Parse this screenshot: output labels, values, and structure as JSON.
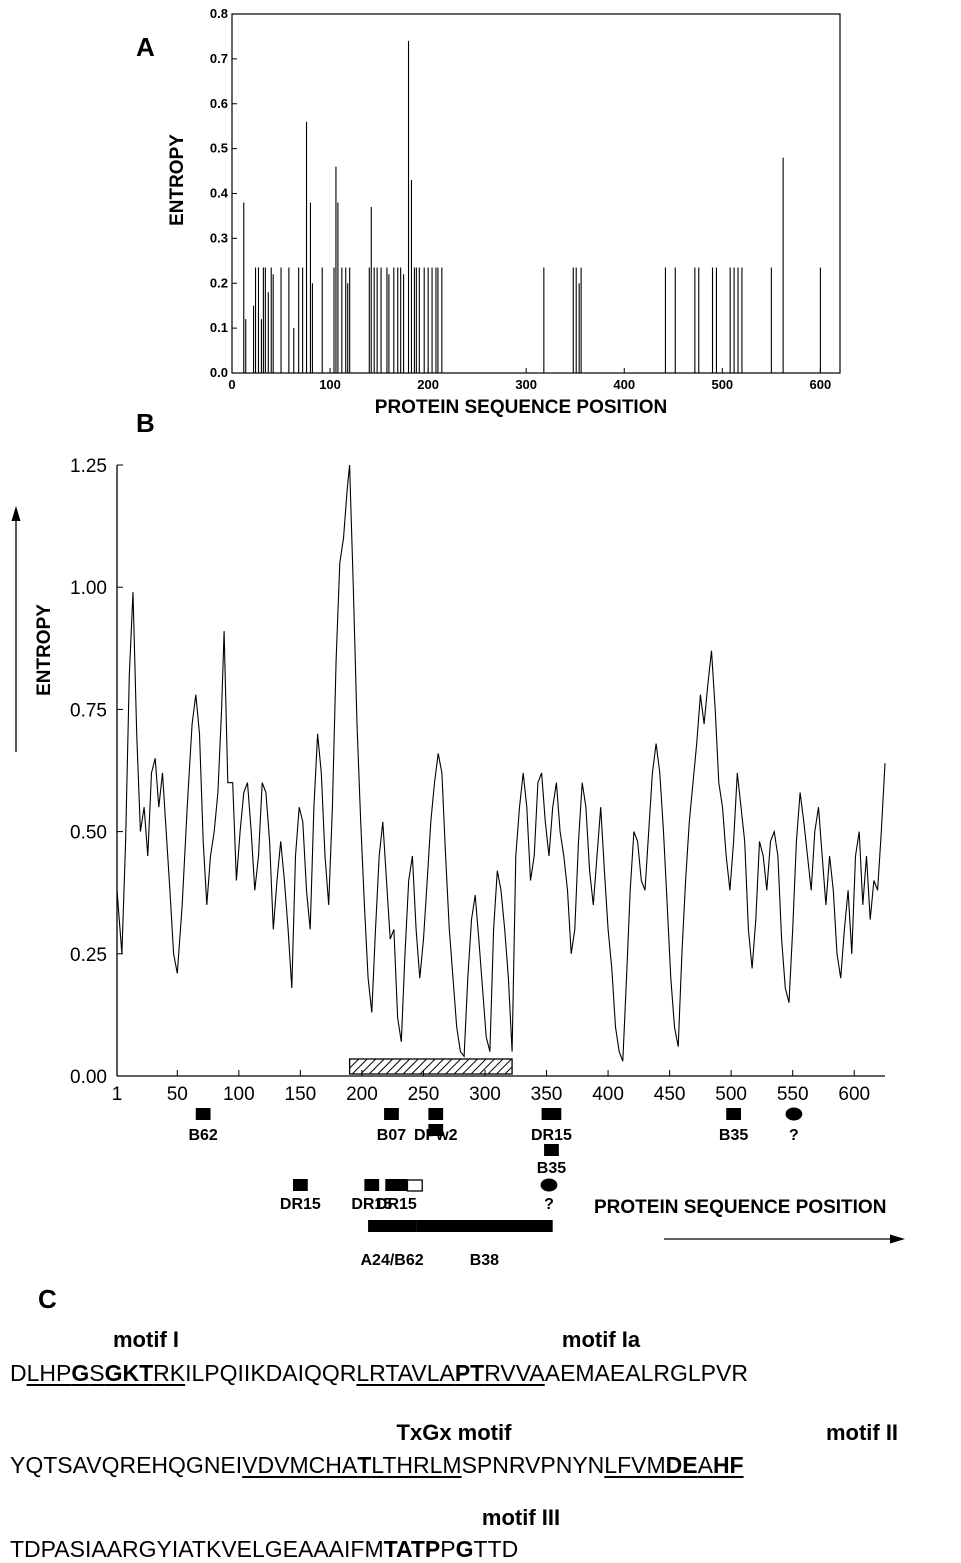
{
  "chart_data": [
    {
      "panel": "A",
      "type": "bar",
      "xlabel": "PROTEIN SEQUENCE POSITION",
      "ylabel": "ENTROPY",
      "xlim": [
        0,
        620
      ],
      "ylim": [
        0,
        0.8
      ],
      "xticks": [
        "0",
        "100",
        "200",
        "300",
        "400",
        "500",
        "600"
      ],
      "yticks": [
        "0.0",
        "0.1",
        "0.2",
        "0.3",
        "0.4",
        "0.5",
        "0.6",
        "0.7",
        "0.8"
      ],
      "points": [
        [
          12,
          0.38
        ],
        [
          14,
          0.12
        ],
        [
          22,
          0.15
        ],
        [
          24,
          0.235
        ],
        [
          27,
          0.235
        ],
        [
          30,
          0.12
        ],
        [
          32,
          0.235
        ],
        [
          34,
          0.235
        ],
        [
          37,
          0.18
        ],
        [
          40,
          0.235
        ],
        [
          42,
          0.22
        ],
        [
          50,
          0.235
        ],
        [
          58,
          0.235
        ],
        [
          63,
          0.1
        ],
        [
          68,
          0.235
        ],
        [
          72,
          0.235
        ],
        [
          76,
          0.56
        ],
        [
          80,
          0.38
        ],
        [
          82,
          0.2
        ],
        [
          92,
          0.235
        ],
        [
          104,
          0.235
        ],
        [
          106,
          0.46
        ],
        [
          108,
          0.38
        ],
        [
          112,
          0.235
        ],
        [
          116,
          0.235
        ],
        [
          118,
          0.2
        ],
        [
          120,
          0.235
        ],
        [
          140,
          0.235
        ],
        [
          142,
          0.37
        ],
        [
          145,
          0.235
        ],
        [
          148,
          0.235
        ],
        [
          152,
          0.235
        ],
        [
          158,
          0.235
        ],
        [
          160,
          0.22
        ],
        [
          165,
          0.235
        ],
        [
          169,
          0.235
        ],
        [
          172,
          0.235
        ],
        [
          175,
          0.22
        ],
        [
          180,
          0.74
        ],
        [
          183,
          0.43
        ],
        [
          186,
          0.235
        ],
        [
          188,
          0.235
        ],
        [
          191,
          0.235
        ],
        [
          196,
          0.235
        ],
        [
          200,
          0.235
        ],
        [
          204,
          0.235
        ],
        [
          208,
          0.235
        ],
        [
          210,
          0.235
        ],
        [
          214,
          0.235
        ],
        [
          318,
          0.235
        ],
        [
          348,
          0.235
        ],
        [
          351,
          0.235
        ],
        [
          354,
          0.2
        ],
        [
          356,
          0.235
        ],
        [
          442,
          0.235
        ],
        [
          452,
          0.235
        ],
        [
          472,
          0.235
        ],
        [
          476,
          0.235
        ],
        [
          490,
          0.235
        ],
        [
          494,
          0.235
        ],
        [
          508,
          0.235
        ],
        [
          512,
          0.235
        ],
        [
          516,
          0.235
        ],
        [
          520,
          0.235
        ],
        [
          550,
          0.235
        ],
        [
          562,
          0.48
        ],
        [
          600,
          0.235
        ]
      ]
    },
    {
      "panel": "B",
      "type": "line",
      "xlabel": "PROTEIN SEQUENCE POSITION",
      "ylabel": "ENTROPY",
      "xlim": [
        1,
        625
      ],
      "ylim": [
        0,
        1.25
      ],
      "xticks": [
        "1",
        "50",
        "100",
        "150",
        "200",
        "250",
        "300",
        "350",
        "400",
        "450",
        "500",
        "550",
        "600"
      ],
      "yticks": [
        "0.00",
        "0.25",
        "0.50",
        "0.75",
        "1.00",
        "1.25"
      ],
      "points": [
        [
          1,
          0.38
        ],
        [
          5,
          0.25
        ],
        [
          8,
          0.48
        ],
        [
          11,
          0.82
        ],
        [
          14,
          0.99
        ],
        [
          17,
          0.7
        ],
        [
          20,
          0.5
        ],
        [
          23,
          0.55
        ],
        [
          26,
          0.45
        ],
        [
          29,
          0.62
        ],
        [
          32,
          0.65
        ],
        [
          35,
          0.55
        ],
        [
          38,
          0.62
        ],
        [
          41,
          0.5
        ],
        [
          44,
          0.38
        ],
        [
          47,
          0.25
        ],
        [
          50,
          0.21
        ],
        [
          54,
          0.35
        ],
        [
          58,
          0.55
        ],
        [
          62,
          0.72
        ],
        [
          65,
          0.78
        ],
        [
          68,
          0.7
        ],
        [
          71,
          0.48
        ],
        [
          74,
          0.35
        ],
        [
          77,
          0.45
        ],
        [
          80,
          0.5
        ],
        [
          83,
          0.58
        ],
        [
          86,
          0.75
        ],
        [
          88,
          0.91
        ],
        [
          91,
          0.6
        ],
        [
          95,
          0.6
        ],
        [
          98,
          0.4
        ],
        [
          101,
          0.5
        ],
        [
          104,
          0.58
        ],
        [
          107,
          0.6
        ],
        [
          110,
          0.5
        ],
        [
          113,
          0.38
        ],
        [
          116,
          0.45
        ],
        [
          119,
          0.6
        ],
        [
          122,
          0.58
        ],
        [
          125,
          0.48
        ],
        [
          128,
          0.3
        ],
        [
          131,
          0.4
        ],
        [
          134,
          0.48
        ],
        [
          137,
          0.4
        ],
        [
          140,
          0.3
        ],
        [
          143,
          0.18
        ],
        [
          146,
          0.45
        ],
        [
          149,
          0.55
        ],
        [
          152,
          0.52
        ],
        [
          155,
          0.38
        ],
        [
          158,
          0.3
        ],
        [
          161,
          0.55
        ],
        [
          164,
          0.7
        ],
        [
          167,
          0.62
        ],
        [
          170,
          0.45
        ],
        [
          173,
          0.35
        ],
        [
          176,
          0.55
        ],
        [
          179,
          0.85
        ],
        [
          182,
          1.05
        ],
        [
          185,
          1.1
        ],
        [
          188,
          1.2
        ],
        [
          190,
          1.25
        ],
        [
          193,
          1.0
        ],
        [
          196,
          0.72
        ],
        [
          199,
          0.52
        ],
        [
          202,
          0.35
        ],
        [
          205,
          0.2
        ],
        [
          208,
          0.13
        ],
        [
          211,
          0.3
        ],
        [
          214,
          0.45
        ],
        [
          217,
          0.52
        ],
        [
          220,
          0.4
        ],
        [
          223,
          0.28
        ],
        [
          226,
          0.3
        ],
        [
          229,
          0.12
        ],
        [
          232,
          0.07
        ],
        [
          235,
          0.25
        ],
        [
          238,
          0.4
        ],
        [
          241,
          0.45
        ],
        [
          244,
          0.3
        ],
        [
          247,
          0.2
        ],
        [
          250,
          0.28
        ],
        [
          253,
          0.4
        ],
        [
          256,
          0.52
        ],
        [
          259,
          0.6
        ],
        [
          262,
          0.66
        ],
        [
          265,
          0.62
        ],
        [
          268,
          0.45
        ],
        [
          271,
          0.3
        ],
        [
          274,
          0.2
        ],
        [
          277,
          0.1
        ],
        [
          280,
          0.05
        ],
        [
          283,
          0.04
        ],
        [
          286,
          0.2
        ],
        [
          289,
          0.32
        ],
        [
          292,
          0.37
        ],
        [
          295,
          0.28
        ],
        [
          298,
          0.18
        ],
        [
          301,
          0.08
        ],
        [
          304,
          0.05
        ],
        [
          307,
          0.3
        ],
        [
          310,
          0.42
        ],
        [
          313,
          0.38
        ],
        [
          316,
          0.3
        ],
        [
          319,
          0.2
        ],
        [
          322,
          0.05
        ],
        [
          325,
          0.45
        ],
        [
          328,
          0.55
        ],
        [
          331,
          0.62
        ],
        [
          334,
          0.55
        ],
        [
          337,
          0.4
        ],
        [
          340,
          0.45
        ],
        [
          343,
          0.6
        ],
        [
          346,
          0.62
        ],
        [
          349,
          0.52
        ],
        [
          352,
          0.45
        ],
        [
          355,
          0.55
        ],
        [
          358,
          0.6
        ],
        [
          361,
          0.5
        ],
        [
          364,
          0.45
        ],
        [
          367,
          0.38
        ],
        [
          370,
          0.25
        ],
        [
          373,
          0.3
        ],
        [
          376,
          0.48
        ],
        [
          379,
          0.6
        ],
        [
          382,
          0.55
        ],
        [
          385,
          0.42
        ],
        [
          388,
          0.35
        ],
        [
          391,
          0.45
        ],
        [
          394,
          0.55
        ],
        [
          397,
          0.42
        ],
        [
          400,
          0.3
        ],
        [
          403,
          0.22
        ],
        [
          406,
          0.1
        ],
        [
          409,
          0.05
        ],
        [
          412,
          0.03
        ],
        [
          415,
          0.2
        ],
        [
          418,
          0.38
        ],
        [
          421,
          0.5
        ],
        [
          424,
          0.48
        ],
        [
          427,
          0.4
        ],
        [
          430,
          0.38
        ],
        [
          433,
          0.5
        ],
        [
          436,
          0.62
        ],
        [
          439,
          0.68
        ],
        [
          442,
          0.62
        ],
        [
          445,
          0.5
        ],
        [
          448,
          0.35
        ],
        [
          451,
          0.2
        ],
        [
          454,
          0.1
        ],
        [
          457,
          0.06
        ],
        [
          460,
          0.25
        ],
        [
          463,
          0.4
        ],
        [
          466,
          0.52
        ],
        [
          469,
          0.6
        ],
        [
          472,
          0.68
        ],
        [
          475,
          0.78
        ],
        [
          478,
          0.72
        ],
        [
          481,
          0.8
        ],
        [
          484,
          0.87
        ],
        [
          487,
          0.75
        ],
        [
          490,
          0.6
        ],
        [
          493,
          0.55
        ],
        [
          496,
          0.45
        ],
        [
          499,
          0.38
        ],
        [
          502,
          0.48
        ],
        [
          505,
          0.62
        ],
        [
          508,
          0.55
        ],
        [
          511,
          0.48
        ],
        [
          514,
          0.3
        ],
        [
          517,
          0.22
        ],
        [
          520,
          0.32
        ],
        [
          523,
          0.48
        ],
        [
          526,
          0.45
        ],
        [
          529,
          0.38
        ],
        [
          532,
          0.48
        ],
        [
          535,
          0.5
        ],
        [
          538,
          0.45
        ],
        [
          541,
          0.28
        ],
        [
          544,
          0.18
        ],
        [
          547,
          0.15
        ],
        [
          550,
          0.3
        ],
        [
          553,
          0.48
        ],
        [
          556,
          0.58
        ],
        [
          559,
          0.52
        ],
        [
          562,
          0.45
        ],
        [
          565,
          0.38
        ],
        [
          568,
          0.5
        ],
        [
          571,
          0.55
        ],
        [
          574,
          0.45
        ],
        [
          577,
          0.35
        ],
        [
          580,
          0.45
        ],
        [
          583,
          0.38
        ],
        [
          586,
          0.25
        ],
        [
          589,
          0.2
        ],
        [
          592,
          0.3
        ],
        [
          595,
          0.38
        ],
        [
          598,
          0.25
        ],
        [
          601,
          0.45
        ],
        [
          604,
          0.5
        ],
        [
          607,
          0.35
        ],
        [
          610,
          0.45
        ],
        [
          613,
          0.32
        ],
        [
          616,
          0.4
        ],
        [
          619,
          0.38
        ],
        [
          622,
          0.5
        ],
        [
          625,
          0.64
        ]
      ],
      "hatched_bar": [
        190,
        322
      ],
      "annotations": [
        {
          "label": "B62",
          "shape": "box",
          "from": 65,
          "to": 77,
          "row": 0
        },
        {
          "label": "B07",
          "shape": "box",
          "from": 218,
          "to": 230,
          "row": 0
        },
        {
          "label": "DPw2",
          "shape": "box",
          "from": 254,
          "to": 266,
          "row": 0
        },
        {
          "label": "DPw2",
          "shape": "box",
          "from": 254,
          "to": 266,
          "row": 1,
          "text": false
        },
        {
          "label": "DR15",
          "shape": "box",
          "from": 346,
          "to": 362,
          "row": 0
        },
        {
          "label": "B35",
          "shape": "box",
          "from": 496,
          "to": 508,
          "row": 0
        },
        {
          "label": "?",
          "shape": "ellipse",
          "from": 545,
          "to": 557,
          "row": 0
        },
        {
          "label": "B35",
          "shape": "box",
          "from": 348,
          "to": 360,
          "row": 2
        },
        {
          "label": "DR15",
          "shape": "box",
          "from": 144,
          "to": 156,
          "row": 3
        },
        {
          "label": "DR15",
          "shape": "box",
          "from": 202,
          "to": 214,
          "row": 3
        },
        {
          "label": "DR15",
          "shape": "box",
          "from": 219,
          "to": 237,
          "row": 3
        },
        {
          "label": "DR15",
          "shape": "openbox",
          "from": 237,
          "to": 249,
          "row": 3,
          "text": false
        },
        {
          "label": "?",
          "shape": "ellipse",
          "from": 346,
          "to": 358,
          "row": 3
        },
        {
          "label": "A24/B62",
          "shape": "bar",
          "from": 205,
          "to": 244,
          "row": 4
        },
        {
          "label": "B38",
          "shape": "bar",
          "from": 244,
          "to": 355,
          "row": 4
        }
      ]
    }
  ],
  "labels": {
    "panel_a": "A",
    "panel_b": "B",
    "panel_c": "C",
    "axis_title_b": "PROTEIN SEQUENCE POSITION"
  },
  "sequence": {
    "motifs": [
      "motif I",
      "motif Ia",
      "TxGx motif",
      "motif II",
      "motif III"
    ],
    "lines": [
      [
        {
          "t": "D"
        },
        {
          "t": "LHP",
          "u": true
        },
        {
          "t": "G",
          "u": true,
          "b": true
        },
        {
          "t": "S",
          "u": true
        },
        {
          "t": "GKT",
          "u": true,
          "b": true
        },
        {
          "t": "RK",
          "u": true
        },
        {
          "t": "ILPQIIKDAIQQR"
        },
        {
          "t": "LRTAVLA",
          "u": true
        },
        {
          "t": "PT",
          "u": true,
          "b": true
        },
        {
          "t": "RVVA",
          "u": true
        },
        {
          "t": "AEMAEALRGLPVR"
        }
      ],
      [
        {
          "t": "YQTSAVQREHQGNEI"
        },
        {
          "t": "VDVMCHA",
          "u": true
        },
        {
          "t": "T",
          "u": true,
          "b": true
        },
        {
          "t": "LTHRLM",
          "u": true
        },
        {
          "t": "SPNRVPNYN"
        },
        {
          "t": "LFVM",
          "u": true
        },
        {
          "t": "DE",
          "u": true,
          "b": true
        },
        {
          "t": "A",
          "u": true
        },
        {
          "t": "HF",
          "u": true,
          "b": true
        }
      ],
      [
        {
          "t": "TDPASIAARGYIATKVELGEAAAIFM"
        },
        {
          "t": "TATP",
          "b": true
        },
        {
          "t": "P"
        },
        {
          "t": "G",
          "b": true
        },
        {
          "t": "TTD"
        }
      ]
    ]
  }
}
